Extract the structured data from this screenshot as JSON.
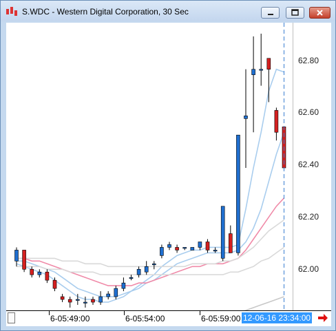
{
  "window": {
    "title": "S.WDC - Western Digital Corporation, 30 Sec"
  },
  "colors": {
    "up_candle": "#1f6fd0",
    "down_candle": "#d42020",
    "ma_light_blue": "#a9cdee",
    "ma_pink": "#f08aa8",
    "ma_light_gray": "#d9d9d9",
    "ma_gray": "#c8c8c8",
    "cursor_line": "#3b7fd1",
    "cursor_label_bg": "#3399ff"
  },
  "price_axis": {
    "labels": [
      "62.80",
      "62.60",
      "62.40",
      "62.20",
      "62.00"
    ]
  },
  "time_axis": {
    "labels": [
      "6-05:49:00",
      "6-05:54:00",
      "6-05:59:00"
    ],
    "cursor_label": "12-06-16 23:34:00"
  },
  "chart_data": {
    "type": "candlestick",
    "title": "S.WDC - Western Digital Corporation, 30 Sec",
    "ylim": [
      61.88,
      62.93
    ],
    "candles": [
      {
        "o": 62.06,
        "h": 62.11,
        "l": 62.04,
        "c": 62.1
      },
      {
        "o": 62.1,
        "h": 62.1,
        "l": 62.02,
        "c": 62.03
      },
      {
        "o": 62.03,
        "h": 62.04,
        "l": 62.0,
        "c": 62.01
      },
      {
        "o": 62.01,
        "h": 62.03,
        "l": 62.0,
        "c": 62.02
      },
      {
        "o": 62.02,
        "h": 62.03,
        "l": 61.98,
        "c": 61.99
      },
      {
        "o": 61.99,
        "h": 62.0,
        "l": 61.95,
        "c": 61.96
      },
      {
        "o": 61.93,
        "h": 61.94,
        "l": 61.91,
        "c": 61.92
      },
      {
        "o": 61.92,
        "h": 61.93,
        "l": 61.89,
        "c": 61.91
      },
      {
        "o": 61.92,
        "h": 61.94,
        "l": 61.9,
        "c": 61.92
      },
      {
        "o": 61.91,
        "h": 61.93,
        "l": 61.89,
        "c": 61.91
      },
      {
        "o": 61.92,
        "h": 61.93,
        "l": 61.9,
        "c": 61.91
      },
      {
        "o": 61.91,
        "h": 61.95,
        "l": 61.9,
        "c": 61.93
      },
      {
        "o": 61.93,
        "h": 61.95,
        "l": 61.92,
        "c": 61.94
      },
      {
        "o": 61.93,
        "h": 61.97,
        "l": 61.92,
        "c": 61.96
      },
      {
        "o": 61.96,
        "h": 62.0,
        "l": 61.95,
        "c": 61.98
      },
      {
        "o": 62.0,
        "h": 62.01,
        "l": 61.99,
        "c": 62.0
      },
      {
        "o": 62.01,
        "h": 62.04,
        "l": 62.0,
        "c": 62.03
      },
      {
        "o": 62.02,
        "h": 62.06,
        "l": 62.01,
        "c": 62.04
      },
      {
        "o": 62.05,
        "h": 62.06,
        "l": 62.03,
        "c": 62.05
      },
      {
        "o": 62.08,
        "h": 62.12,
        "l": 62.07,
        "c": 62.11
      },
      {
        "o": 62.11,
        "h": 62.13,
        "l": 62.1,
        "c": 62.12
      },
      {
        "o": 62.11,
        "h": 62.12,
        "l": 62.09,
        "c": 62.1
      },
      {
        "o": 62.11,
        "h": 62.11,
        "l": 62.1,
        "c": 62.11
      },
      {
        "o": 62.1,
        "h": 62.11,
        "l": 62.1,
        "c": 62.11
      },
      {
        "o": 62.11,
        "h": 62.13,
        "l": 62.1,
        "c": 62.13
      },
      {
        "o": 62.13,
        "h": 62.14,
        "l": 62.09,
        "c": 62.1
      },
      {
        "o": 62.1,
        "h": 62.11,
        "l": 62.09,
        "c": 62.1
      },
      {
        "o": 62.07,
        "h": 62.26,
        "l": 62.06,
        "c": 62.26
      },
      {
        "o": 62.16,
        "h": 62.19,
        "l": 62.09,
        "c": 62.09
      },
      {
        "o": 62.09,
        "h": 62.52,
        "l": 62.08,
        "c": 62.52
      },
      {
        "o": 62.58,
        "h": 62.76,
        "l": 62.4,
        "c": 62.59
      },
      {
        "o": 62.74,
        "h": 62.88,
        "l": 62.53,
        "c": 62.76
      },
      {
        "o": 62.76,
        "h": 62.89,
        "l": 62.7,
        "c": 62.76
      },
      {
        "o": 62.8,
        "h": 62.8,
        "l": 62.64,
        "c": 62.76
      },
      {
        "o": 62.61,
        "h": 62.62,
        "l": 62.5,
        "c": 62.53
      },
      {
        "o": 62.55,
        "h": 62.55,
        "l": 62.39,
        "c": 62.4
      }
    ],
    "moving_averages": [
      {
        "color_key": "ma_light_blue",
        "values": [
          62.05,
          62.04,
          62.03,
          62.02,
          62.01,
          61.99,
          61.97,
          61.95,
          61.93,
          61.92,
          61.92,
          61.91,
          61.91,
          61.92,
          61.93,
          61.95,
          61.97,
          61.99,
          62.01,
          62.04,
          62.06,
          62.08,
          62.09,
          62.1,
          62.1,
          62.11,
          62.11,
          62.11,
          62.11,
          62.12,
          62.25,
          62.4,
          62.53,
          62.68,
          62.76,
          62.75
        ]
      },
      {
        "color_key": "ma_light_blue",
        "values": [
          62.06,
          62.06,
          62.05,
          62.04,
          62.03,
          62.02,
          62.0,
          61.98,
          61.96,
          61.95,
          61.94,
          61.93,
          61.93,
          61.93,
          61.94,
          61.95,
          61.96,
          61.98,
          61.99,
          62.01,
          62.03,
          62.05,
          62.06,
          62.07,
          62.08,
          62.09,
          62.09,
          62.09,
          62.09,
          62.1,
          62.13,
          62.18,
          62.25,
          62.35,
          62.45,
          62.53
        ]
      },
      {
        "color_key": "ma_pink",
        "values": [
          62.07,
          62.07,
          62.06,
          62.06,
          62.05,
          62.04,
          62.03,
          62.02,
          62.01,
          62.0,
          61.99,
          61.98,
          61.97,
          61.97,
          61.97,
          61.97,
          61.98,
          61.98,
          61.99,
          62.0,
          62.01,
          62.02,
          62.03,
          62.04,
          62.04,
          62.05,
          62.05,
          62.05,
          62.06,
          62.07,
          62.1,
          62.14,
          62.18,
          62.22,
          62.26,
          62.29
        ]
      },
      {
        "color_key": "ma_light_gray",
        "values": [
          62.07,
          62.07,
          62.07,
          62.07,
          62.07,
          62.07,
          62.06,
          62.06,
          62.06,
          62.05,
          62.05,
          62.05,
          62.04,
          62.04,
          62.04,
          62.04,
          62.04,
          62.04,
          62.04,
          62.04,
          62.04,
          62.04,
          62.04,
          62.05,
          62.05,
          62.05,
          62.05,
          62.06,
          62.06,
          62.07,
          62.09,
          62.11,
          62.14,
          62.17,
          62.19,
          62.21
        ]
      },
      {
        "color_key": "ma_light_gray",
        "values": [
          62.04,
          62.04,
          62.04,
          62.04,
          62.03,
          62.03,
          62.03,
          62.02,
          62.02,
          62.02,
          62.02,
          62.01,
          62.01,
          62.01,
          62.01,
          62.01,
          62.01,
          62.01,
          62.01,
          62.01,
          62.01,
          62.01,
          62.01,
          62.01,
          62.01,
          62.01,
          62.01,
          62.01,
          62.02,
          62.02,
          62.03,
          62.04,
          62.06,
          62.07,
          62.09,
          62.11
        ]
      },
      {
        "color_key": "ma_gray",
        "values": [
          null,
          null,
          null,
          null,
          null,
          null,
          null,
          null,
          null,
          null,
          null,
          null,
          null,
          null,
          null,
          null,
          null,
          null,
          null,
          null,
          null,
          61.78,
          61.8,
          61.81,
          61.82,
          61.83,
          61.84,
          61.85,
          61.86,
          61.87,
          61.88,
          61.89,
          61.9,
          61.91,
          61.92,
          61.93
        ]
      }
    ]
  }
}
